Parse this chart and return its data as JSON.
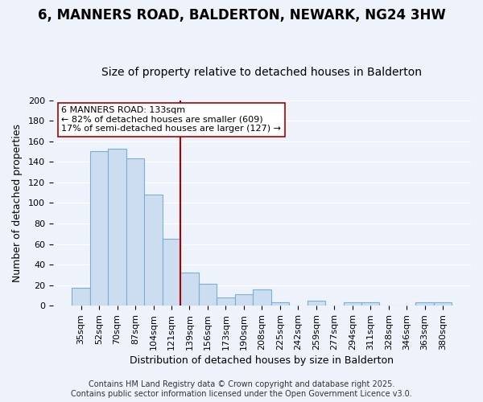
{
  "title": "6, MANNERS ROAD, BALDERTON, NEWARK, NG24 3HW",
  "subtitle": "Size of property relative to detached houses in Balderton",
  "xlabel": "Distribution of detached houses by size in Balderton",
  "ylabel": "Number of detached properties",
  "categories": [
    "35sqm",
    "52sqm",
    "70sqm",
    "87sqm",
    "104sqm",
    "121sqm",
    "139sqm",
    "156sqm",
    "173sqm",
    "190sqm",
    "208sqm",
    "225sqm",
    "242sqm",
    "259sqm",
    "277sqm",
    "294sqm",
    "311sqm",
    "328sqm",
    "346sqm",
    "363sqm",
    "380sqm"
  ],
  "values": [
    17,
    150,
    153,
    143,
    108,
    65,
    32,
    21,
    8,
    11,
    16,
    3,
    0,
    5,
    0,
    3,
    3,
    0,
    0,
    3,
    3
  ],
  "bar_color": "#ccddf0",
  "bar_edge_color": "#7aafd4",
  "vline_pos": 5.5,
  "vline_color": "#aa0000",
  "ylim": [
    0,
    200
  ],
  "yticks": [
    0,
    20,
    40,
    60,
    80,
    100,
    120,
    140,
    160,
    180,
    200
  ],
  "annotation_title": "6 MANNERS ROAD: 133sqm",
  "annotation_line1": "← 82% of detached houses are smaller (609)",
  "annotation_line2": "17% of semi-detached houses are larger (127) →",
  "annotation_box_color": "#ffffff",
  "annotation_box_edge": "#aa0000",
  "footer1": "Contains HM Land Registry data © Crown copyright and database right 2025.",
  "footer2": "Contains public sector information licensed under the Open Government Licence v3.0.",
  "bg_color": "#eef2fb",
  "grid_color": "#ffffff",
  "title_fontsize": 12,
  "subtitle_fontsize": 10,
  "axis_label_fontsize": 9,
  "tick_fontsize": 8,
  "footer_fontsize": 7,
  "annotation_fontsize": 8
}
